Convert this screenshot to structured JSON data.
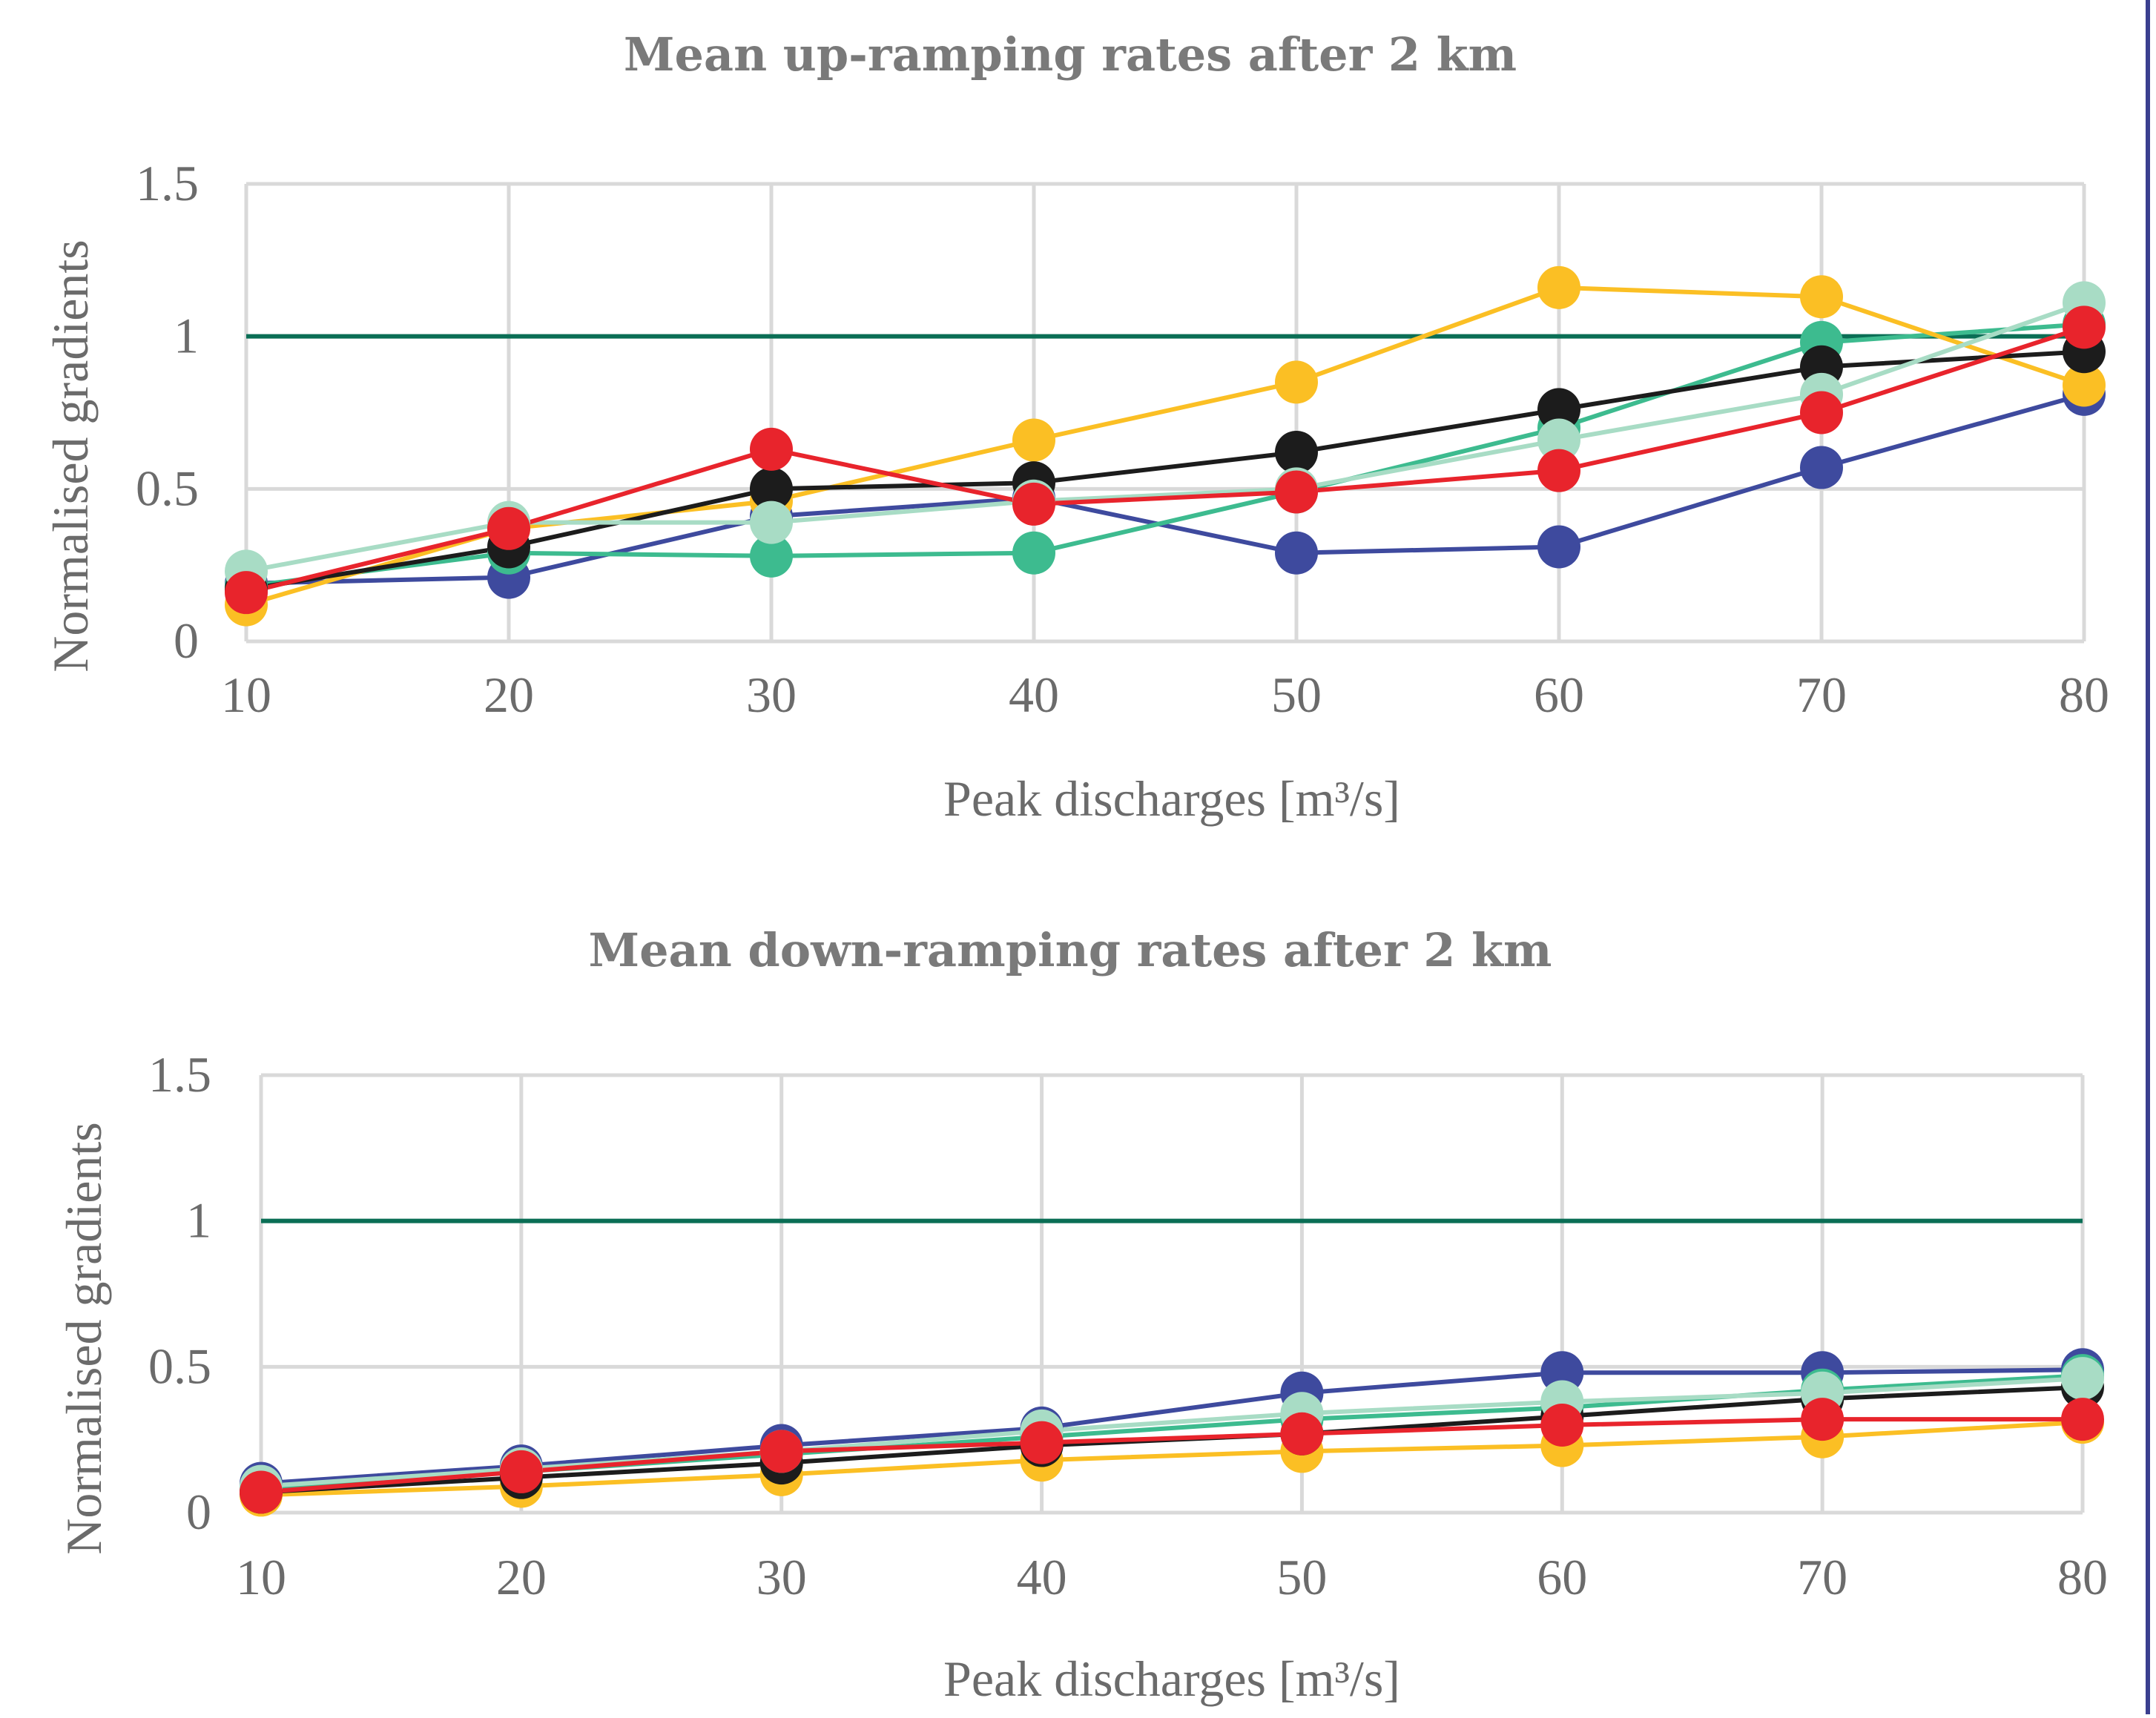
{
  "colors": {
    "reference": "#0a6e55",
    "grid": "#d9d9d9",
    "text": "#6b6b6b",
    "title": "#7a7a7a",
    "border": "#3a3f8f"
  },
  "chart_data": [
    {
      "type": "line",
      "title": "Mean up-ramping rates after 2 km",
      "xlabel": "Peak discharges [m³/s]",
      "ylabel": "Normalised gradients",
      "x": [
        10,
        20,
        30,
        40,
        50,
        60,
        70,
        80
      ],
      "ylim": [
        0,
        1.5
      ],
      "yticks": [
        "0",
        "0.5",
        "1",
        "1.5"
      ],
      "grid": true,
      "reference_line": {
        "y": 1,
        "color": "#0a6e55"
      },
      "series": [
        {
          "color": "#3e4a9e",
          "values": [
            0.19,
            0.21,
            0.41,
            0.47,
            0.29,
            0.31,
            0.57,
            0.81
          ]
        },
        {
          "color": "#3dbb8f",
          "values": [
            0.18,
            0.29,
            0.28,
            0.29,
            0.49,
            0.7,
            0.98,
            1.04
          ]
        },
        {
          "color": "#fbbf24",
          "values": [
            0.12,
            0.37,
            0.46,
            0.66,
            0.85,
            1.16,
            1.13,
            0.84
          ]
        },
        {
          "color": "#1c1c1c",
          "values": [
            0.17,
            0.31,
            0.5,
            0.52,
            0.62,
            0.76,
            0.9,
            0.95
          ]
        },
        {
          "color": "#a8dcc5",
          "values": [
            0.23,
            0.39,
            0.39,
            0.46,
            0.5,
            0.66,
            0.81,
            1.11
          ]
        },
        {
          "color": "#e8242c",
          "values": [
            0.16,
            0.37,
            0.63,
            0.45,
            0.49,
            0.56,
            0.75,
            1.03
          ]
        }
      ]
    },
    {
      "type": "line",
      "title": "Mean down-ramping rates after 2 km",
      "xlabel": "Peak discharges [m³/s]",
      "ylabel": "Normalised gradients",
      "x": [
        10,
        20,
        30,
        40,
        50,
        60,
        70,
        80
      ],
      "ylim": [
        0,
        1.5
      ],
      "yticks": [
        "0",
        "0.5",
        "1",
        "1.5"
      ],
      "grid": true,
      "reference_line": {
        "y": 1,
        "color": "#0a6e55"
      },
      "series": [
        {
          "color": "#3e4a9e",
          "values": [
            0.1,
            0.16,
            0.23,
            0.29,
            0.41,
            0.48,
            0.48,
            0.49
          ]
        },
        {
          "color": "#3dbb8f",
          "values": [
            0.08,
            0.14,
            0.2,
            0.26,
            0.32,
            0.36,
            0.42,
            0.47
          ]
        },
        {
          "color": "#fbbf24",
          "values": [
            0.06,
            0.09,
            0.13,
            0.18,
            0.21,
            0.23,
            0.26,
            0.31
          ]
        },
        {
          "color": "#1c1c1c",
          "values": [
            0.07,
            0.12,
            0.17,
            0.23,
            0.27,
            0.33,
            0.39,
            0.43
          ]
        },
        {
          "color": "#a8dcc5",
          "values": [
            0.09,
            0.15,
            0.21,
            0.28,
            0.34,
            0.38,
            0.41,
            0.46
          ]
        },
        {
          "color": "#e8242c",
          "values": [
            0.07,
            0.14,
            0.21,
            0.24,
            0.27,
            0.3,
            0.32,
            0.32
          ]
        }
      ]
    }
  ]
}
